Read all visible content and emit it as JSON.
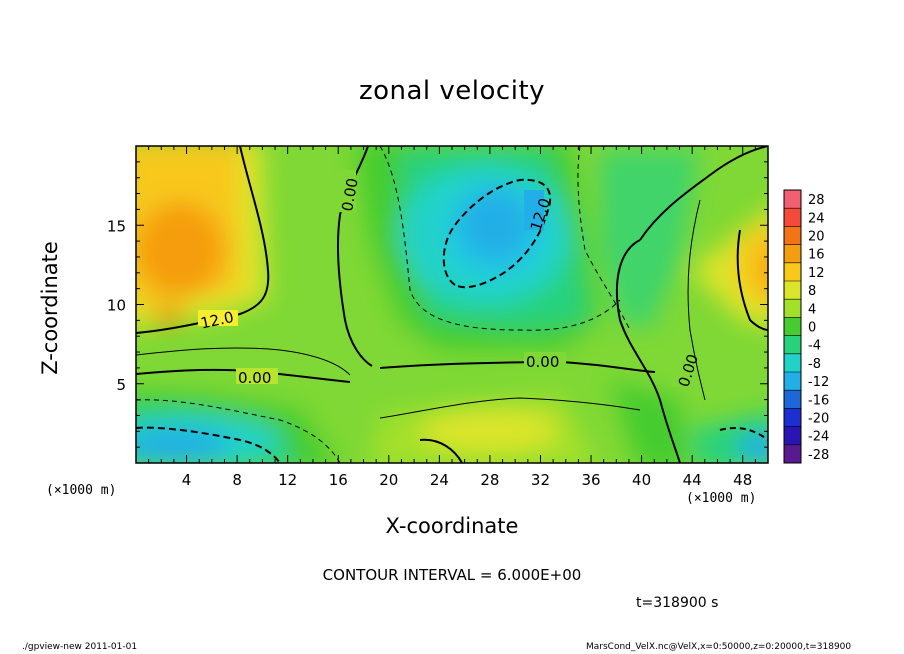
{
  "chart_data": {
    "type": "heatmap",
    "title": "zonal velocity",
    "xlabel": "X-coordinate",
    "ylabel": "Z-coordinate",
    "x_unit_label": "(×1000 m)",
    "xlim": [
      0,
      50
    ],
    "ylim": [
      0,
      20
    ],
    "x_ticks": [
      4,
      8,
      12,
      16,
      20,
      24,
      28,
      32,
      36,
      40,
      44,
      48
    ],
    "y_ticks": [
      5,
      10,
      15
    ],
    "colorbar_levels": [
      28,
      24,
      20,
      16,
      12,
      8,
      4,
      0,
      -4,
      -8,
      -12,
      -16,
      -20,
      -24,
      -28
    ],
    "colorbar_colors": [
      "#f06070",
      "#f54a3a",
      "#f37315",
      "#f59d10",
      "#f8c81a",
      "#dbe52a",
      "#a3e02a",
      "#45cc2e",
      "#28d27d",
      "#20d3c8",
      "#22aee6",
      "#1c68d8",
      "#1d2fd0",
      "#2b14b5",
      "#5a1a8f"
    ],
    "contour_labels": [
      "12.0",
      "0.00",
      "0.00",
      "0.00",
      "12.0",
      "0.00"
    ],
    "contour_interval_text": "CONTOUR INTERVAL = 6.000E+00",
    "time_text": "t=318900 s",
    "grid": false,
    "legend": "right colorbar"
  },
  "footer": {
    "left": "./gpview-new  2011-01-01",
    "right": "MarsCond_VelX.nc@VelX,x=0:50000,z=0:20000,t=318900"
  }
}
